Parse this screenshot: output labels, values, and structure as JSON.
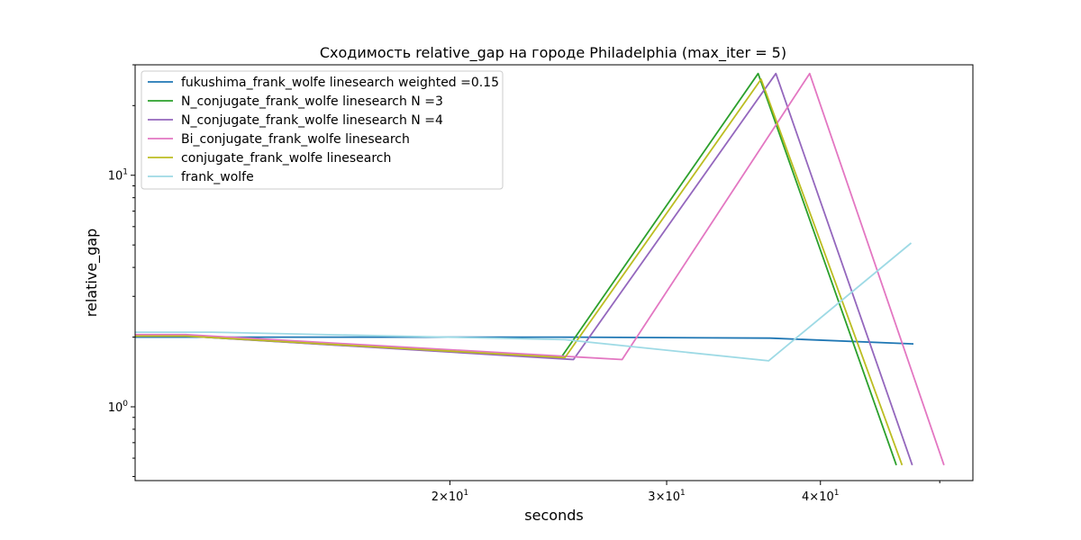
{
  "chart_data": {
    "type": "line",
    "title": "Сходимость relative_gap на городе Philadelphia  (max_iter = 5)",
    "xlabel": "seconds",
    "ylabel": "relative_gap",
    "xscale": "log",
    "yscale": "log",
    "xlim": [
      11.1,
      53.2
    ],
    "ylim": [
      0.48,
      30
    ],
    "x_ticks": [
      {
        "value": 20,
        "base": "2×10",
        "exp": "1"
      },
      {
        "value": 30,
        "base": "3×10",
        "exp": "1"
      },
      {
        "value": 40,
        "base": "4×10",
        "exp": "1"
      }
    ],
    "y_ticks": [
      {
        "value": 1,
        "base": "10",
        "exp": "0"
      },
      {
        "value": 10,
        "base": "10",
        "exp": "1"
      }
    ],
    "grid": false,
    "legend_position": "top-left",
    "series": [
      {
        "name": "fukushima_frank_wolfe linesearch weighted =0.15",
        "color": "#1f77b4",
        "points": [
          [
            11.1,
            2.0
          ],
          [
            24.6,
            2.0
          ],
          [
            36.4,
            1.98
          ],
          [
            47.6,
            1.87
          ]
        ]
      },
      {
        "name": "N_conjugate_frank_wolfe linesearch N =3",
        "color": "#2ca02c",
        "points": [
          [
            11.1,
            2.02
          ],
          [
            12.2,
            2.02
          ],
          [
            24.6,
            1.62
          ],
          [
            35.6,
            27.5
          ],
          [
            46.1,
            0.56
          ]
        ]
      },
      {
        "name": "N_conjugate_frank_wolfe linesearch N =4",
        "color": "#9467bd",
        "points": [
          [
            11.1,
            2.02
          ],
          [
            12.2,
            2.02
          ],
          [
            25.2,
            1.6
          ],
          [
            36.8,
            27.5
          ],
          [
            47.5,
            0.56
          ]
        ]
      },
      {
        "name": "Bi_conjugate_frank_wolfe linesearch",
        "color": "#e377c2",
        "points": [
          [
            11.1,
            2.05
          ],
          [
            12.2,
            2.05
          ],
          [
            27.6,
            1.6
          ],
          [
            39.2,
            27.5
          ],
          [
            50.4,
            0.56
          ]
        ]
      },
      {
        "name": "conjugate_frank_wolfe linesearch",
        "color": "#bcbd22",
        "points": [
          [
            11.1,
            2.02
          ],
          [
            12.2,
            2.02
          ],
          [
            24.8,
            1.63
          ],
          [
            35.8,
            26.0
          ],
          [
            46.6,
            0.56
          ]
        ]
      },
      {
        "name": "frank_wolfe",
        "color": "#9edae5",
        "points": [
          [
            11.1,
            2.1
          ],
          [
            12.8,
            2.1
          ],
          [
            24.8,
            1.95
          ],
          [
            36.3,
            1.58
          ],
          [
            47.4,
            5.1
          ]
        ]
      }
    ]
  }
}
